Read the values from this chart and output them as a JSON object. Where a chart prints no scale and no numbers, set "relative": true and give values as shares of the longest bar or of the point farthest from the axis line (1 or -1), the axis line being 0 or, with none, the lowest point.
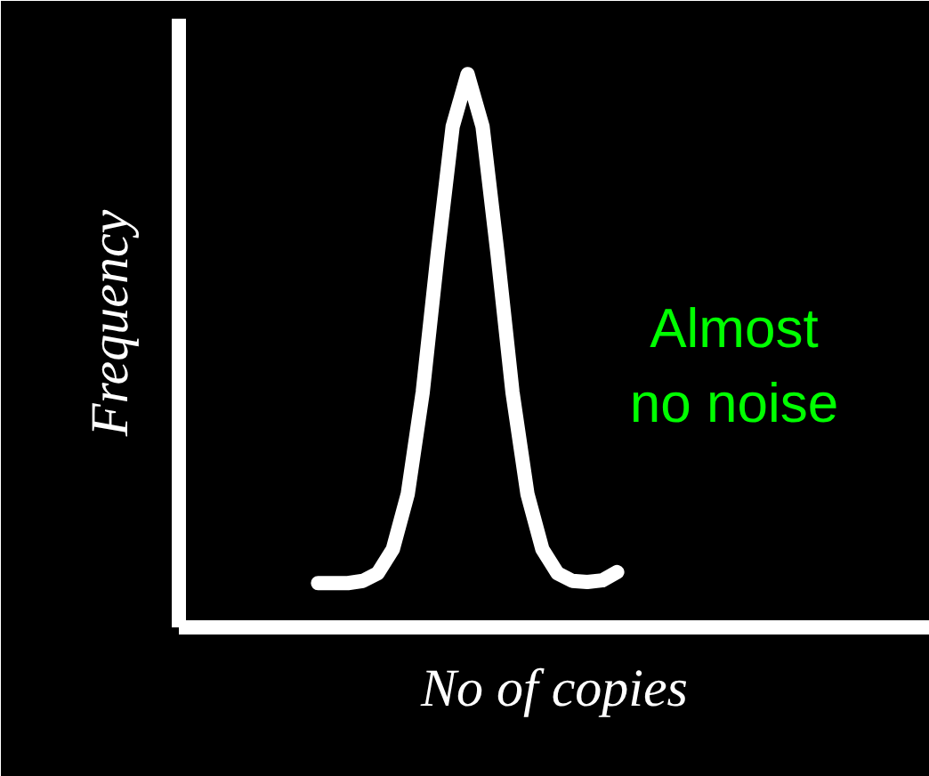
{
  "chart_data": {
    "type": "line",
    "relative": true,
    "xlabel": "No of copies",
    "ylabel": "Frequency",
    "categories": [
      null,
      null,
      null,
      null,
      null,
      null,
      null,
      null,
      null,
      null,
      null,
      null,
      null,
      null,
      null,
      null,
      null,
      null,
      null,
      null,
      null
    ],
    "series": [
      {
        "color": "#ffffff",
        "values": [
          0.08,
          0.08,
          0.08,
          0.084,
          0.098,
          0.141,
          0.241,
          0.425,
          0.675,
          0.905,
          1.0,
          0.905,
          0.675,
          0.425,
          0.241,
          0.141,
          0.098,
          0.084,
          0.082,
          0.085,
          0.1
        ]
      }
    ],
    "annotations": [
      "Almost no noise"
    ]
  }
}
